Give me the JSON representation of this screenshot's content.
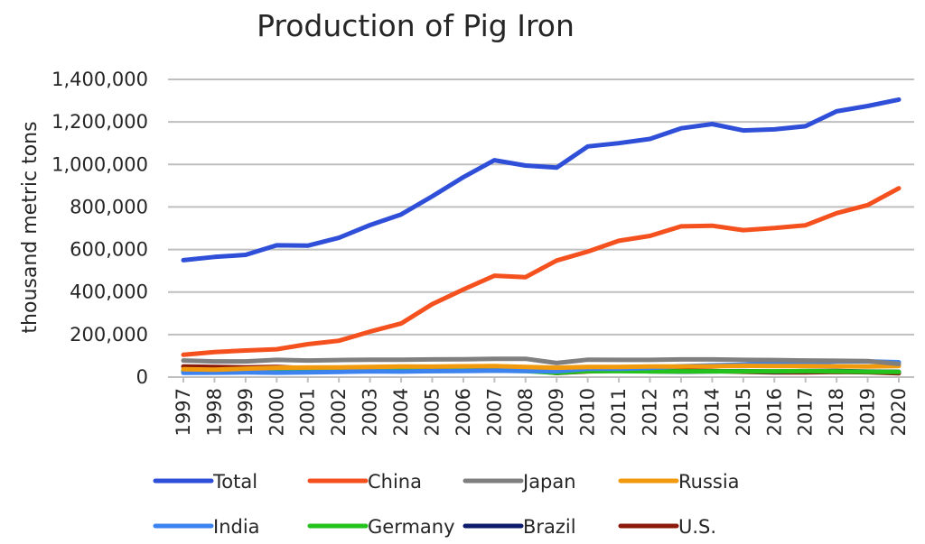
{
  "chart_data": {
    "type": "line",
    "title": "Production of Pig Iron",
    "xlabel": "",
    "ylabel": "thousand metric tons",
    "ylim": [
      0,
      1400000
    ],
    "yticks": [
      0,
      200000,
      400000,
      600000,
      800000,
      1000000,
      1200000,
      1400000
    ],
    "ytick_labels": [
      "0",
      "200,000",
      "400,000",
      "600,000",
      "800,000",
      "1,000,000",
      "1,200,000",
      "1,400,000"
    ],
    "grid": true,
    "legend_position": "bottom",
    "categories": [
      "1997",
      "1998",
      "1999",
      "2000",
      "2001",
      "2002",
      "2003",
      "2004",
      "2005",
      "2006",
      "2007",
      "2008",
      "2009",
      "2010",
      "2011",
      "2012",
      "2013",
      "2014",
      "2015",
      "2016",
      "2017",
      "2018",
      "2019",
      "2020"
    ],
    "series": [
      {
        "name": "Total",
        "color": "#2f4fd8",
        "values": [
          550000,
          565000,
          575000,
          620000,
          618000,
          655000,
          715000,
          765000,
          850000,
          940000,
          1020000,
          995000,
          985000,
          1085000,
          1100000,
          1120000,
          1170000,
          1190000,
          1160000,
          1165000,
          1180000,
          1250000,
          1275000,
          1305000
        ]
      },
      {
        "name": "China",
        "color": "#f4511e",
        "values": [
          105000,
          118000,
          125000,
          131000,
          155000,
          171000,
          214000,
          252000,
          343000,
          412000,
          477000,
          470000,
          548000,
          590000,
          641000,
          664000,
          709000,
          712000,
          691000,
          701000,
          714000,
          771000,
          809000,
          888000
        ]
      },
      {
        "name": "Japan",
        "color": "#7f7f7f",
        "values": [
          78000,
          74000,
          74000,
          81000,
          78000,
          80000,
          82000,
          82000,
          83000,
          84000,
          86000,
          86000,
          66000,
          82000,
          81000,
          81000,
          83000,
          83000,
          81000,
          80000,
          78000,
          77000,
          75000,
          62000
        ]
      },
      {
        "name": "Russia",
        "color": "#f29a0e",
        "values": [
          37000,
          35000,
          40000,
          44000,
          45000,
          46000,
          48000,
          50000,
          49000,
          51000,
          52000,
          48000,
          44000,
          48000,
          48000,
          50000,
          50000,
          51000,
          53000,
          52000,
          52000,
          51000,
          50000,
          52000
        ]
      },
      {
        "name": "India",
        "color": "#3c83f0",
        "values": [
          20000,
          21000,
          22000,
          21000,
          22000,
          24000,
          27000,
          26000,
          28000,
          29000,
          30000,
          29000,
          27000,
          39000,
          39000,
          43000,
          51000,
          55000,
          58000,
          64000,
          67000,
          74000,
          74000,
          70000
        ]
      },
      {
        "name": "Germany",
        "color": "#24c21c",
        "values": [
          30000,
          30000,
          27000,
          31000,
          29000,
          30000,
          30000,
          30000,
          29000,
          30000,
          31000,
          29000,
          20000,
          29000,
          28000,
          27000,
          27000,
          27000,
          27000,
          27000,
          28000,
          27000,
          25000,
          24000
        ]
      },
      {
        "name": "Brazil",
        "color": "#0d1b6b",
        "values": [
          25000,
          25000,
          25000,
          27000,
          27000,
          29000,
          32000,
          34000,
          34000,
          32000,
          35000,
          35000,
          25000,
          31000,
          33000,
          27000,
          26000,
          27000,
          28000,
          26000,
          28000,
          29000,
          26000,
          25000
        ]
      },
      {
        "name": "U.S.",
        "color": "#8b1a0a",
        "values": [
          50000,
          48000,
          46000,
          48000,
          42000,
          40000,
          41000,
          42000,
          37000,
          38000,
          36000,
          34000,
          19000,
          27000,
          30000,
          32000,
          30000,
          29000,
          25000,
          22000,
          22000,
          24000,
          23000,
          18000
        ]
      }
    ]
  }
}
